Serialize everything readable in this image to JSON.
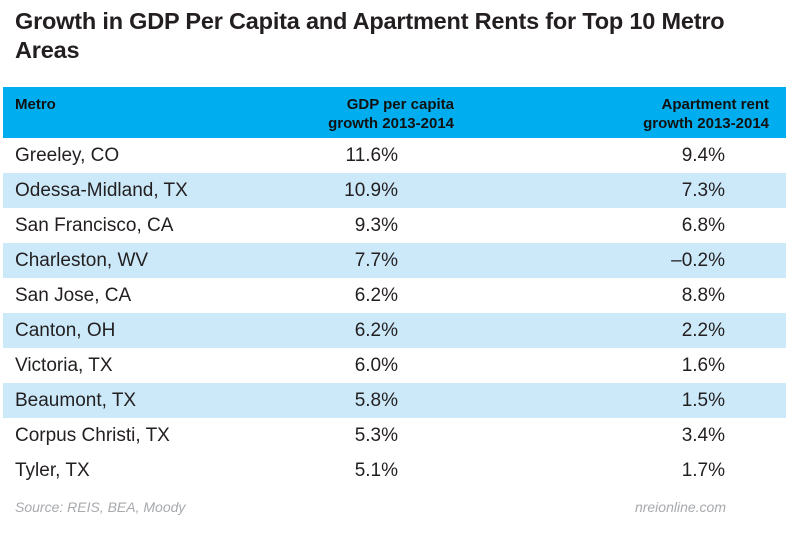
{
  "chart_data": {
    "type": "table",
    "title": "Growth in GDP Per Capita and Apartment Rents for Top 10 Metro Areas",
    "columns": [
      "Metro",
      "GDP per capita growth 2013-2014",
      "Apartment rent growth 2013-2014"
    ],
    "header": {
      "metro": "Metro",
      "gdp_line1": "GDP per capita",
      "gdp_line2": "growth 2013-2014",
      "rent_line1": "Apartment rent",
      "rent_line2": "growth 2013-2014"
    },
    "rows": [
      {
        "metro": "Greeley, CO",
        "gdp": "11.6%",
        "rent": "9.4%"
      },
      {
        "metro": "Odessa-Midland, TX",
        "gdp": "10.9%",
        "rent": "7.3%"
      },
      {
        "metro": "San Francisco, CA",
        "gdp": "9.3%",
        "rent": "6.8%"
      },
      {
        "metro": "Charleston, WV",
        "gdp": "7.7%",
        "rent": "–0.2%"
      },
      {
        "metro": "San Jose, CA",
        "gdp": "6.2%",
        "rent": "8.8%"
      },
      {
        "metro": "Canton, OH",
        "gdp": "6.2%",
        "rent": "2.2%"
      },
      {
        "metro": "Victoria, TX",
        "gdp": "6.0%",
        "rent": "1.6%"
      },
      {
        "metro": "Beaumont, TX",
        "gdp": "5.8%",
        "rent": "1.5%"
      },
      {
        "metro": "Corpus Christi, TX",
        "gdp": "5.3%",
        "rent": "3.4%"
      },
      {
        "metro": "Tyler, TX",
        "gdp": "5.1%",
        "rent": "1.7%"
      }
    ],
    "source": "Source: REIS, BEA, Moody",
    "site": "nreionline.com",
    "colors": {
      "header": "#00aeef",
      "alt_row": "#cce9f9",
      "footnote": "#a7a9ac"
    }
  }
}
